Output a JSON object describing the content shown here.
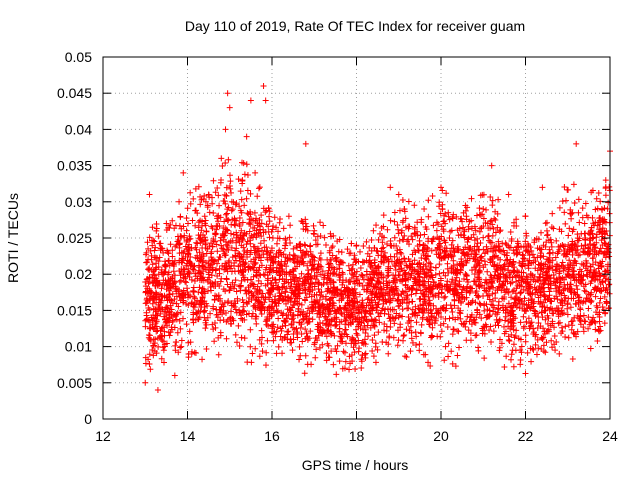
{
  "chart_data": {
    "type": "scatter",
    "title": "Day 110 of 2019, Rate Of TEC Index for receiver guam",
    "xlabel": "GPS time / hours",
    "ylabel": "ROTI / TECUs",
    "xlim": [
      12,
      24
    ],
    "ylim": [
      0,
      0.05
    ],
    "x_ticks": [
      12,
      14,
      16,
      18,
      20,
      22,
      24
    ],
    "x_tick_labels": [
      "12",
      "14",
      "16",
      "18",
      "20",
      "22",
      "24"
    ],
    "y_ticks": [
      0,
      0.005,
      0.01,
      0.015,
      0.02,
      0.025,
      0.03,
      0.035,
      0.04,
      0.045,
      0.05
    ],
    "y_tick_labels": [
      "0",
      "0.005",
      "0.01",
      "0.015",
      "0.02",
      "0.025",
      "0.03",
      "0.035",
      "0.04",
      "0.045",
      "0.05"
    ],
    "grid": true,
    "marker": "plus",
    "series": [
      {
        "name": "ROTI",
        "color": "#ff0000",
        "points": [
          [
            13.0,
            0.005
          ],
          [
            13.05,
            0.018
          ],
          [
            13.1,
            0.031
          ],
          [
            13.15,
            0.022
          ],
          [
            13.2,
            0.011
          ],
          [
            13.3,
            0.004
          ],
          [
            13.4,
            0.02
          ],
          [
            13.5,
            0.027
          ],
          [
            13.6,
            0.012
          ],
          [
            13.7,
            0.006
          ],
          [
            13.8,
            0.03
          ],
          [
            13.9,
            0.034
          ],
          [
            14.0,
            0.02
          ],
          [
            14.1,
            0.009
          ],
          [
            14.2,
            0.016
          ],
          [
            14.3,
            0.025
          ],
          [
            14.4,
            0.014
          ],
          [
            14.5,
            0.031
          ],
          [
            14.6,
            0.022
          ],
          [
            14.7,
            0.028
          ],
          [
            14.8,
            0.036
          ],
          [
            14.9,
            0.04
          ],
          [
            14.95,
            0.045
          ],
          [
            15.0,
            0.043
          ],
          [
            15.05,
            0.03
          ],
          [
            15.1,
            0.018
          ],
          [
            15.2,
            0.025
          ],
          [
            15.3,
            0.033
          ],
          [
            15.4,
            0.039
          ],
          [
            15.5,
            0.044
          ],
          [
            15.6,
            0.034
          ],
          [
            15.7,
            0.027
          ],
          [
            15.8,
            0.046
          ],
          [
            15.85,
            0.044
          ],
          [
            15.9,
            0.022
          ],
          [
            16.0,
            0.012
          ],
          [
            16.2,
            0.02
          ],
          [
            16.4,
            0.028
          ],
          [
            16.6,
            0.016
          ],
          [
            16.8,
            0.038
          ],
          [
            17.0,
            0.026
          ],
          [
            17.2,
            0.012
          ],
          [
            17.4,
            0.022
          ],
          [
            17.6,
            0.008
          ],
          [
            17.8,
            0.018
          ],
          [
            18.0,
            0.024
          ],
          [
            18.2,
            0.011
          ],
          [
            18.4,
            0.026
          ],
          [
            18.6,
            0.015
          ],
          [
            18.8,
            0.032
          ],
          [
            19.0,
            0.031
          ],
          [
            19.2,
            0.021
          ],
          [
            19.4,
            0.012
          ],
          [
            19.6,
            0.029
          ],
          [
            19.8,
            0.018
          ],
          [
            20.0,
            0.032
          ],
          [
            20.2,
            0.025
          ],
          [
            20.4,
            0.014
          ],
          [
            20.6,
            0.028
          ],
          [
            20.8,
            0.019
          ],
          [
            21.0,
            0.029
          ],
          [
            21.2,
            0.035
          ],
          [
            21.4,
            0.022
          ],
          [
            21.6,
            0.031
          ],
          [
            21.8,
            0.016
          ],
          [
            22.0,
            0.028
          ],
          [
            22.2,
            0.012
          ],
          [
            22.4,
            0.032
          ],
          [
            22.6,
            0.018
          ],
          [
            22.8,
            0.009
          ],
          [
            23.0,
            0.016
          ],
          [
            23.2,
            0.038
          ],
          [
            23.4,
            0.027
          ],
          [
            23.6,
            0.014
          ],
          [
            23.8,
            0.021
          ],
          [
            23.9,
            0.033
          ],
          [
            24.0,
            0.037
          ]
        ],
        "density_profile": {
          "x": [
            13.0,
            13.5,
            14.0,
            14.5,
            15.0,
            15.5,
            16.0,
            16.5,
            17.0,
            17.5,
            18.0,
            18.5,
            19.0,
            19.5,
            20.0,
            20.5,
            21.0,
            21.5,
            22.0,
            22.5,
            23.0,
            23.5,
            24.0
          ],
          "y_low": [
            0.003,
            0.004,
            0.005,
            0.005,
            0.004,
            0.004,
            0.005,
            0.006,
            0.005,
            0.005,
            0.004,
            0.004,
            0.005,
            0.006,
            0.005,
            0.006,
            0.005,
            0.004,
            0.004,
            0.005,
            0.006,
            0.006,
            0.007
          ],
          "y_high": [
            0.028,
            0.026,
            0.031,
            0.033,
            0.036,
            0.035,
            0.028,
            0.027,
            0.028,
            0.025,
            0.024,
            0.027,
            0.031,
            0.029,
            0.032,
            0.03,
            0.031,
            0.03,
            0.028,
            0.027,
            0.033,
            0.031,
            0.034
          ],
          "n_points": 4200
        }
      }
    ]
  }
}
